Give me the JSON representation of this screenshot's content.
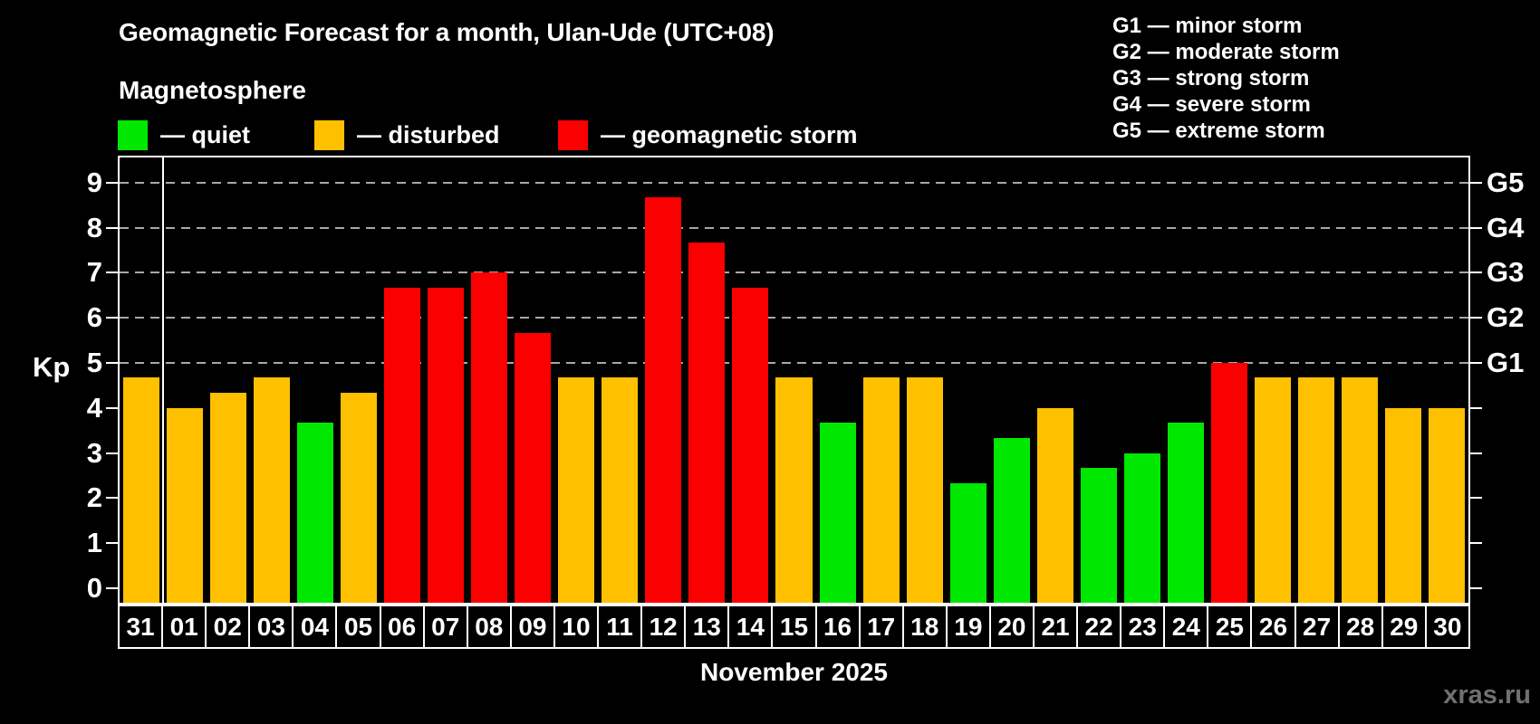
{
  "subtitle": "Magnetosphere",
  "watermark": "xras.ru",
  "colors": {
    "quiet": "#00e800",
    "disturbed": "#ffc000",
    "storm": "#fb0000",
    "grid": "#a8a8a8",
    "axis": "#ffffff",
    "background": "#000000",
    "watermark": "#707070"
  },
  "legend": {
    "items": [
      {
        "status": "quiet",
        "label": "— quiet"
      },
      {
        "status": "disturbed",
        "label": "— disturbed"
      },
      {
        "status": "storm",
        "label": "— geomagnetic storm"
      }
    ]
  },
  "g_scale_legend": {
    "lines": [
      "G1 — minor storm",
      "G2 — moderate storm",
      "G3 — strong storm",
      "G4 — severe storm",
      "G5 — extreme storm"
    ]
  },
  "chart_data": {
    "type": "bar",
    "title": "Geomagnetic Forecast for a month, Ulan-Ude (UTC+08)",
    "xlabel": "November 2025",
    "ylabel": "Kp",
    "ylim": [
      0,
      9
    ],
    "grid": "dashed horizontal lines at Kp 5-9 only",
    "legend_position": "top-left statuses, top-right G-scale",
    "y_ticks": [
      0,
      1,
      2,
      3,
      4,
      5,
      6,
      7,
      8,
      9
    ],
    "right_axis_labels": [
      {
        "level": 5,
        "label": "G1"
      },
      {
        "level": 6,
        "label": "G2"
      },
      {
        "level": 7,
        "label": "G3"
      },
      {
        "level": 8,
        "label": "G4"
      },
      {
        "level": 9,
        "label": "G5"
      }
    ],
    "grid_levels": [
      5,
      6,
      7,
      8,
      9
    ],
    "month_separator_after_index": 0,
    "categories": [
      "31",
      "01",
      "02",
      "03",
      "04",
      "05",
      "06",
      "07",
      "08",
      "09",
      "10",
      "11",
      "12",
      "13",
      "14",
      "15",
      "16",
      "17",
      "18",
      "19",
      "20",
      "21",
      "22",
      "23",
      "24",
      "25",
      "26",
      "27",
      "28",
      "29",
      "30"
    ],
    "values": [
      4.67,
      4.0,
      4.33,
      4.67,
      3.67,
      4.33,
      6.67,
      6.67,
      7.0,
      5.67,
      4.67,
      4.67,
      8.67,
      7.67,
      6.67,
      4.67,
      3.67,
      4.67,
      4.67,
      2.33,
      3.33,
      4.0,
      2.67,
      3.0,
      3.67,
      5.0,
      4.67,
      4.67,
      4.67,
      4.0,
      4.0
    ],
    "statuses": [
      "disturbed",
      "disturbed",
      "disturbed",
      "disturbed",
      "quiet",
      "disturbed",
      "storm",
      "storm",
      "storm",
      "storm",
      "disturbed",
      "disturbed",
      "storm",
      "storm",
      "storm",
      "disturbed",
      "quiet",
      "disturbed",
      "disturbed",
      "quiet",
      "quiet",
      "disturbed",
      "quiet",
      "quiet",
      "quiet",
      "storm",
      "disturbed",
      "disturbed",
      "disturbed",
      "disturbed",
      "disturbed"
    ]
  }
}
